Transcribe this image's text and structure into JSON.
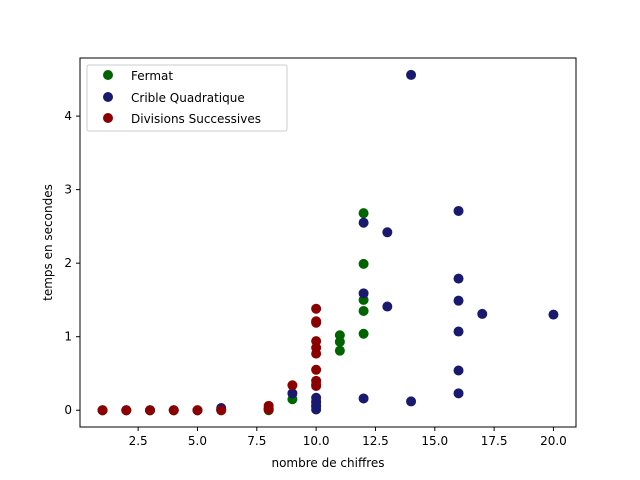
{
  "chart_data": {
    "type": "scatter",
    "xlabel": "nombre de chiffres",
    "ylabel": "temps en secondes",
    "xlim": [
      0.05,
      20.95
    ],
    "ylim": [
      -0.228,
      4.79
    ],
    "xticks": [
      2.5,
      5.0,
      7.5,
      10.0,
      12.5,
      15.0,
      17.5,
      20.0
    ],
    "xtick_labels": [
      "2.5",
      "5.0",
      "7.5",
      "10.0",
      "12.5",
      "15.0",
      "17.5",
      "20.0"
    ],
    "yticks": [
      0,
      1,
      2,
      3,
      4
    ],
    "ytick_labels": [
      "0",
      "1",
      "2",
      "3",
      "4"
    ],
    "grid": false,
    "legend_position": "upper-left",
    "series": [
      {
        "name": "Fermat",
        "color": "#006400",
        "points": [
          [
            1,
            0
          ],
          [
            2,
            0
          ],
          [
            3,
            0
          ],
          [
            4,
            0
          ],
          [
            5,
            0
          ],
          [
            6,
            0
          ],
          [
            8,
            0
          ],
          [
            9,
            0.15
          ],
          [
            10,
            0.1
          ],
          [
            10,
            0.05
          ],
          [
            11,
            1.02
          ],
          [
            11,
            0.93
          ],
          [
            11,
            0.81
          ],
          [
            12,
            2.68
          ],
          [
            12,
            1.99
          ],
          [
            12,
            1.5
          ],
          [
            12,
            1.35
          ],
          [
            12,
            1.04
          ]
        ]
      },
      {
        "name": "Crible Quadratique",
        "color": "#191970",
        "points": [
          [
            1,
            0
          ],
          [
            2,
            0
          ],
          [
            3,
            0
          ],
          [
            4,
            0
          ],
          [
            5,
            0
          ],
          [
            6,
            0.03
          ],
          [
            6,
            0.01
          ],
          [
            8,
            0.02
          ],
          [
            9,
            0.23
          ],
          [
            10,
            0.17
          ],
          [
            10,
            0.12
          ],
          [
            10,
            0.06
          ],
          [
            10,
            0.01
          ],
          [
            12,
            2.55
          ],
          [
            12,
            1.59
          ],
          [
            12,
            0.16
          ],
          [
            13,
            2.42
          ],
          [
            13,
            1.41
          ],
          [
            14,
            4.56
          ],
          [
            14,
            0.12
          ],
          [
            16,
            2.71
          ],
          [
            16,
            1.79
          ],
          [
            16,
            1.49
          ],
          [
            16,
            1.07
          ],
          [
            16,
            0.54
          ],
          [
            16,
            0.23
          ],
          [
            17,
            1.31
          ],
          [
            20,
            1.3
          ]
        ]
      },
      {
        "name": "Divisions Successives",
        "color": "#8b0000",
        "points": [
          [
            1,
            0
          ],
          [
            2,
            0
          ],
          [
            3,
            0
          ],
          [
            4,
            0
          ],
          [
            5,
            0
          ],
          [
            6,
            0
          ],
          [
            8,
            0.06
          ],
          [
            8,
            0.03
          ],
          [
            8,
            0.01
          ],
          [
            9,
            0.34
          ],
          [
            10,
            1.38
          ],
          [
            10,
            1.21
          ],
          [
            10,
            1.19
          ],
          [
            10,
            0.94
          ],
          [
            10,
            0.85
          ],
          [
            10,
            0.77
          ],
          [
            10,
            0.55
          ],
          [
            10,
            0.4
          ],
          [
            10,
            0.35
          ],
          [
            10,
            0.33
          ]
        ]
      }
    ]
  }
}
